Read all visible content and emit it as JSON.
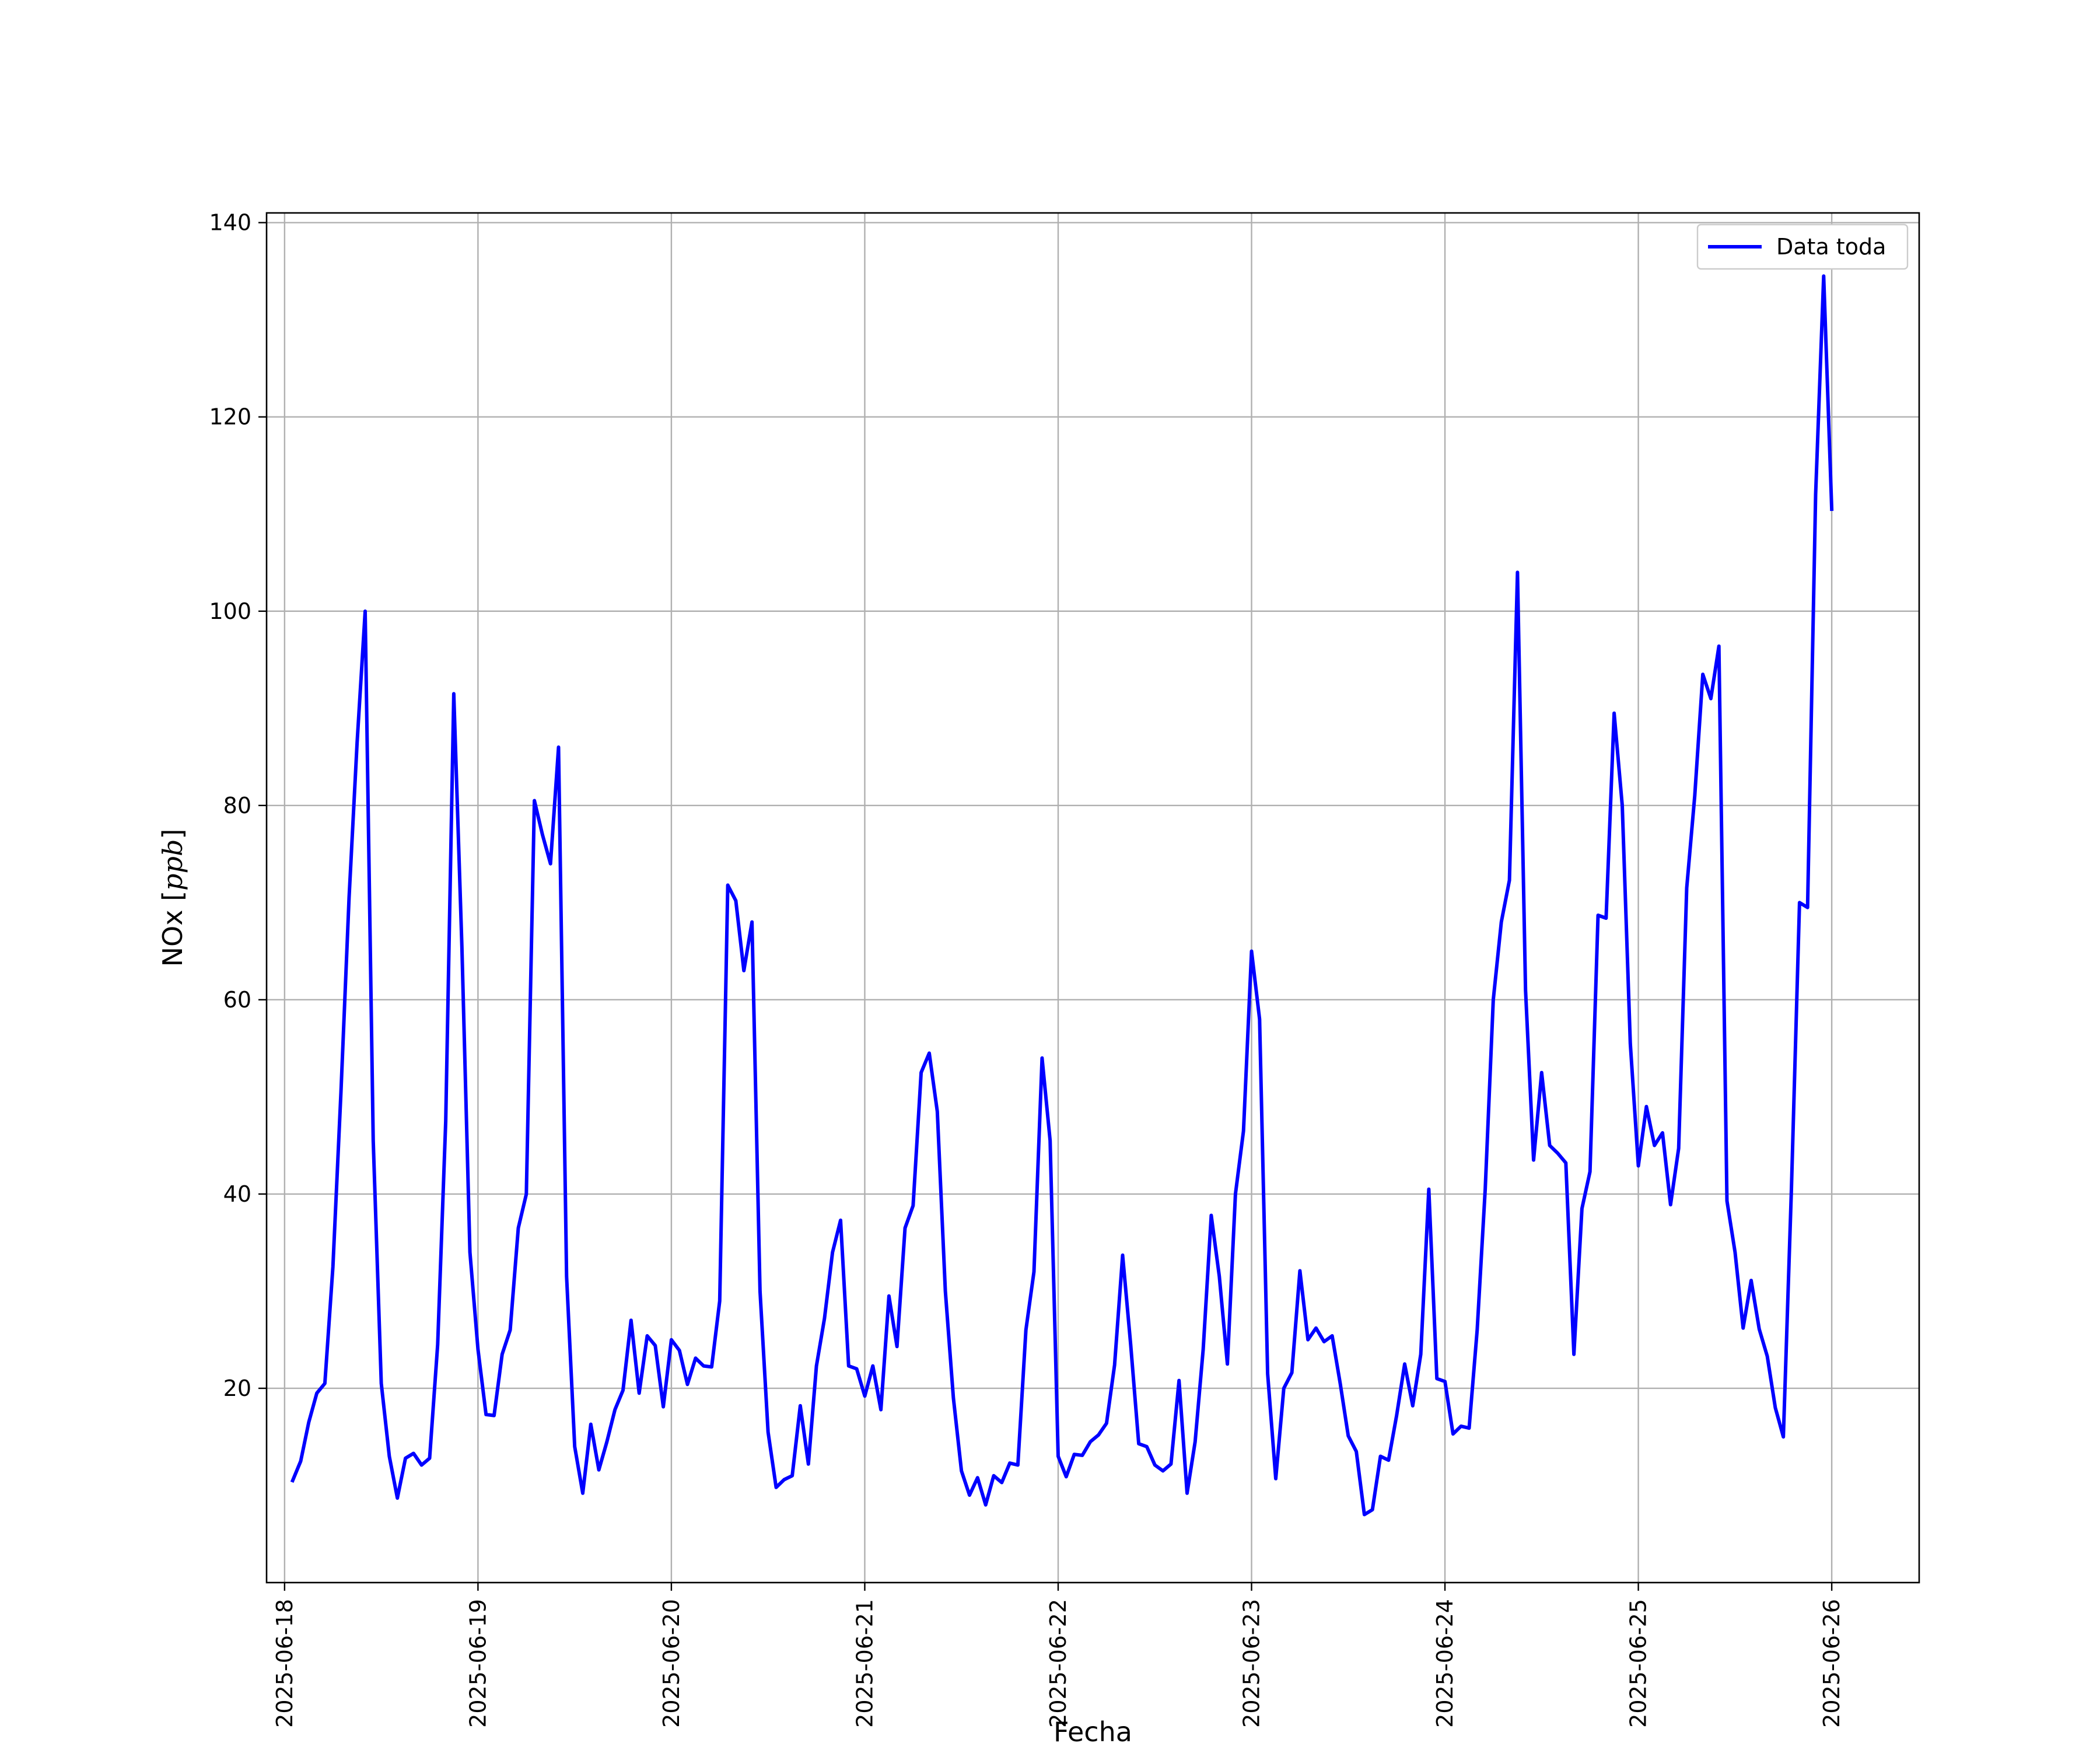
{
  "chart_data": {
    "type": "line",
    "xlabel": "Fecha",
    "ylabel": "NOx [ppb]",
    "ylim": [
      0,
      141
    ],
    "xlim": [
      "2025-06-17T21:46",
      "2025-06-26T10:51"
    ],
    "yticks": [
      20,
      40,
      60,
      80,
      100,
      120,
      140
    ],
    "xticks": [
      "2025-06-18",
      "2025-06-19",
      "2025-06-20",
      "2025-06-21",
      "2025-06-22",
      "2025-06-23",
      "2025-06-24",
      "2025-06-25",
      "2025-06-26"
    ],
    "grid": true,
    "legend_position": "top-right",
    "series": [
      {
        "name": "Data toda",
        "color": "#0000ff",
        "start": "2025-06-18T01:00",
        "interval_hours": 1,
        "values": [
          10.5,
          12.5,
          16.5,
          19.5,
          20.5,
          32.5,
          50.5,
          70.5,
          86.5,
          100.0,
          45.5,
          20.5,
          13.0,
          8.7,
          12.8,
          13.3,
          12.1,
          12.8,
          24.5,
          47.5,
          91.5,
          65.5,
          34.0,
          24.0,
          17.3,
          17.2,
          23.5,
          26.0,
          36.5,
          40.0,
          80.5,
          77.0,
          74.0,
          86.0,
          31.5,
          14.0,
          9.2,
          16.3,
          11.6,
          14.5,
          17.8,
          19.8,
          27.0,
          19.5,
          25.4,
          24.4,
          18.1,
          25.0,
          23.9,
          20.4,
          23.1,
          22.3,
          22.2,
          29.0,
          71.8,
          70.2,
          63.0,
          68.0,
          30.0,
          15.5,
          9.8,
          10.6,
          11.0,
          18.2,
          12.2,
          22.3,
          27.2,
          34.0,
          37.3,
          22.3,
          22.0,
          19.2,
          22.3,
          17.8,
          29.5,
          24.3,
          36.5,
          38.8,
          52.5,
          54.5,
          48.5,
          30.0,
          19.0,
          11.5,
          9.0,
          10.8,
          8.0,
          11.0,
          10.3,
          12.3,
          12.1,
          26.0,
          32.0,
          54.0,
          45.5,
          13.0,
          10.9,
          13.2,
          13.1,
          14.5,
          15.2,
          16.4,
          22.4,
          33.7,
          24.5,
          14.3,
          14.0,
          12.1,
          11.5,
          12.2,
          20.8,
          9.2,
          14.5,
          24.0,
          37.8,
          31.5,
          22.5,
          40.0,
          46.5,
          65.0,
          58.0,
          21.5,
          10.7,
          20.0,
          21.6,
          32.1,
          25.0,
          26.2,
          24.8,
          25.4,
          20.5,
          15.1,
          13.5,
          7.0,
          7.5,
          13.0,
          12.6,
          17.2,
          22.5,
          18.2,
          23.5,
          40.5,
          21.0,
          20.7,
          15.3,
          16.1,
          15.9,
          26.0,
          40.5,
          60.0,
          68.0,
          72.3,
          104.0,
          61.0,
          43.5,
          52.5,
          45.0,
          44.2,
          43.2,
          23.5,
          38.5,
          42.3,
          68.7,
          68.4,
          89.5,
          80.0,
          55.5,
          42.9,
          49.0,
          45.0,
          46.3,
          38.9,
          44.7,
          71.5,
          81.0,
          93.5,
          91.0,
          96.4,
          39.3,
          34.0,
          26.2,
          31.1,
          26.1,
          23.3,
          18.0,
          15.0,
          40.5,
          70.0,
          69.5,
          112.0,
          134.5,
          110.5
        ]
      }
    ]
  }
}
